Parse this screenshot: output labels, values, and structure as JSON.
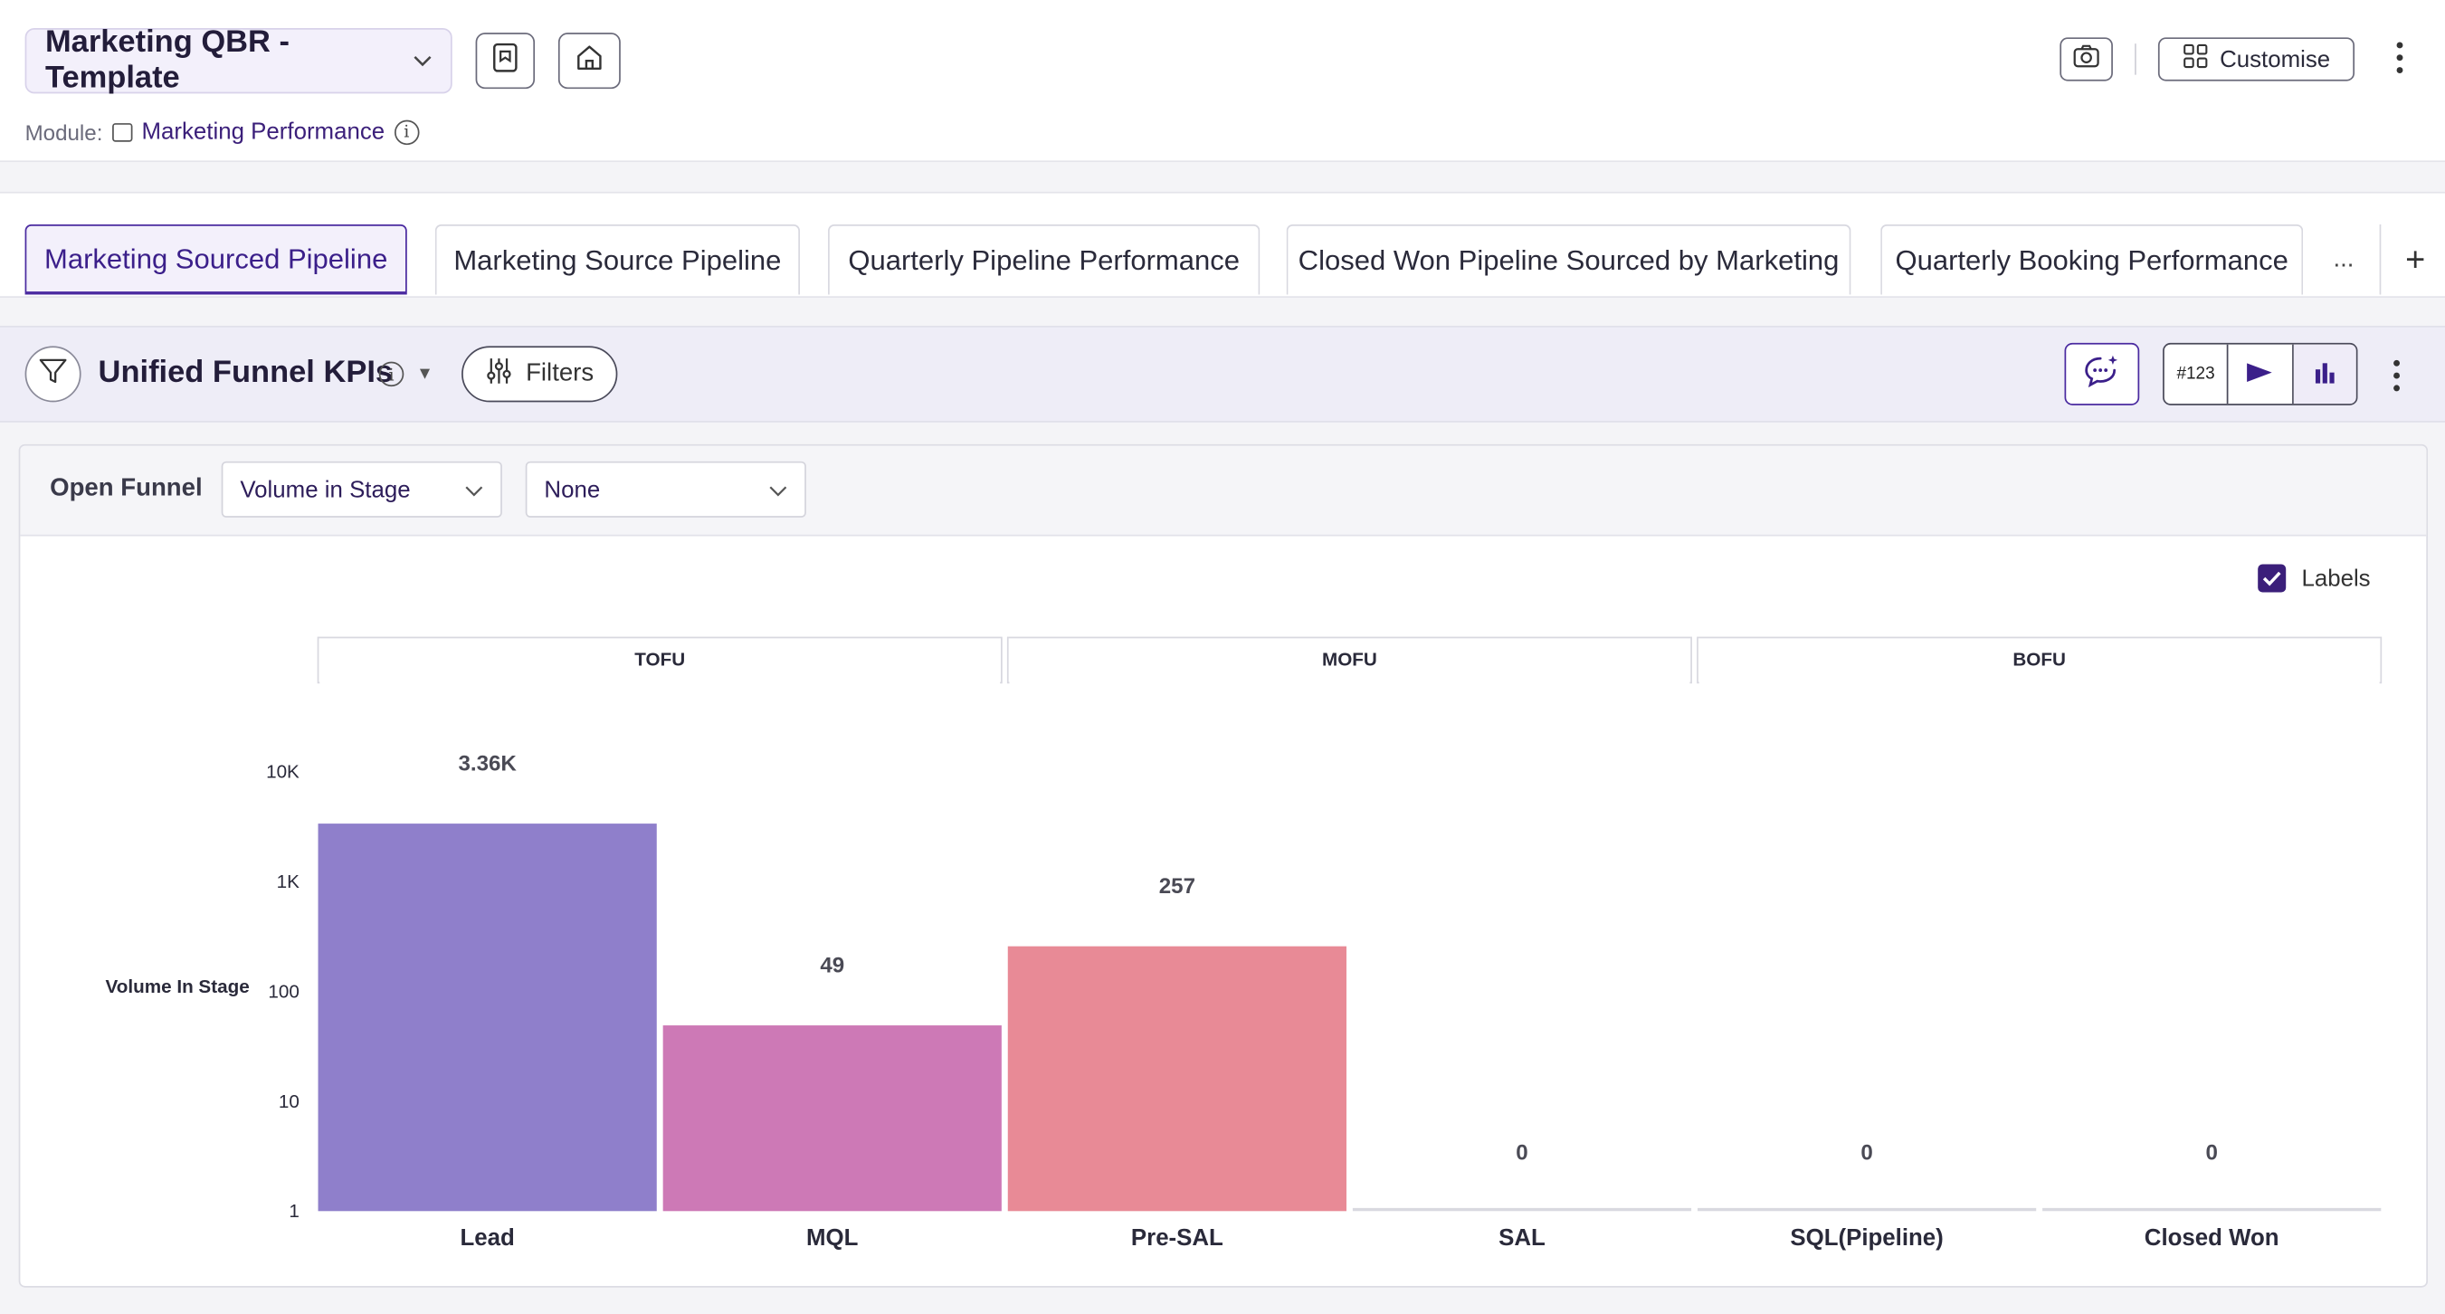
{
  "header": {
    "title": "Marketing QBR - Template",
    "module_label": "Module:",
    "module_name": "Marketing Performance",
    "customise_label": "Customise"
  },
  "tabs": [
    {
      "label": "Marketing Sourced Pipeline",
      "active": true
    },
    {
      "label": "Marketing Source Pipeline"
    },
    {
      "label": "Quarterly Pipeline Performance"
    },
    {
      "label": "Closed Won Pipeline Sourced by Marketing"
    },
    {
      "label": "Quarterly Booking Performance"
    }
  ],
  "tabs_more": "...",
  "tabs_add": "+",
  "widget": {
    "title": "Unified Funnel KPIs",
    "filters_label": "Filters",
    "seg_number_label": "#123"
  },
  "toolbar": {
    "label": "Open Funnel",
    "metric_select": "Volume in Stage",
    "group_select": "None",
    "labels_checkbox": "Labels"
  },
  "chart_data": {
    "type": "bar",
    "ylabel": "Volume In Stage",
    "yscale": "log",
    "yticks": [
      "1",
      "10",
      "100",
      "1K",
      "10K"
    ],
    "ylim": [
      1,
      10000
    ],
    "groups": [
      {
        "name": "TOFU",
        "categories": [
          "Lead",
          "MQL"
        ]
      },
      {
        "name": "MOFU",
        "categories": [
          "Pre-SAL",
          "SAL"
        ]
      },
      {
        "name": "BOFU",
        "categories": [
          "SQL(Pipeline)",
          "Closed Won"
        ]
      }
    ],
    "categories": [
      "Lead",
      "MQL",
      "Pre-SAL",
      "SAL",
      "SQL(Pipeline)",
      "Closed Won"
    ],
    "values": [
      3360,
      49,
      257,
      0,
      0,
      0
    ],
    "data_labels": [
      "3.36K",
      "49",
      "257",
      "0",
      "0",
      "0"
    ],
    "colors": [
      "#8f7fcb",
      "#cd79b6",
      "#e88a96",
      "#d9d9e0",
      "#d9d9e0",
      "#d9d9e0"
    ]
  }
}
